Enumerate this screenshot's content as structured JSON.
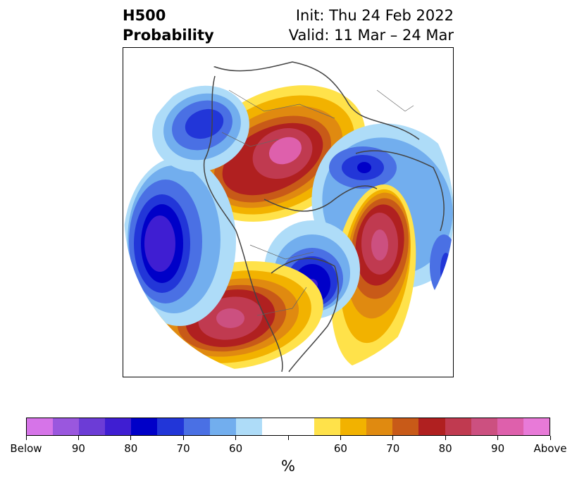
{
  "header": {
    "variable": "H500",
    "product": "Probability",
    "init": "Init: Thu 24 Feb 2022",
    "valid": "Valid: 11 Mar – 24 Mar"
  },
  "map": {
    "projection": "north-polar-stereographic",
    "regions": [
      {
        "name": "above-normal-northeast-siberia",
        "category": "above",
        "peak_percent": 90
      },
      {
        "name": "below-normal-scandinavia-barents",
        "category": "below",
        "peak_percent": 80
      },
      {
        "name": "above-normal-north-atlantic",
        "category": "above",
        "peak_percent": 90
      },
      {
        "name": "below-normal-eastern-canada",
        "category": "below",
        "peak_percent": 80
      },
      {
        "name": "above-normal-western-us",
        "category": "above",
        "peak_percent": 90
      },
      {
        "name": "below-normal-north-pacific",
        "category": "below",
        "peak_percent": 80
      },
      {
        "name": "below-normal-eastern-asia",
        "category": "below",
        "peak_percent": 70
      }
    ]
  },
  "colorbar": {
    "colors": [
      "#d674e8",
      "#9a57de",
      "#6c3cd6",
      "#3f1ed2",
      "#0000c8",
      "#2236d8",
      "#4a70e4",
      "#72aeee",
      "#aedcf8",
      "#ffffff",
      "#ffffff",
      "#ffe24a",
      "#f2b200",
      "#e08a10",
      "#c85a18",
      "#b02020",
      "#c03a50",
      "#cc5080",
      "#de60ac",
      "#e87ad8"
    ],
    "tick_labels": [
      "Below",
      "90",
      "80",
      "70",
      "60",
      "",
      "60",
      "70",
      "80",
      "90",
      "Above"
    ],
    "unit_label": "%"
  }
}
